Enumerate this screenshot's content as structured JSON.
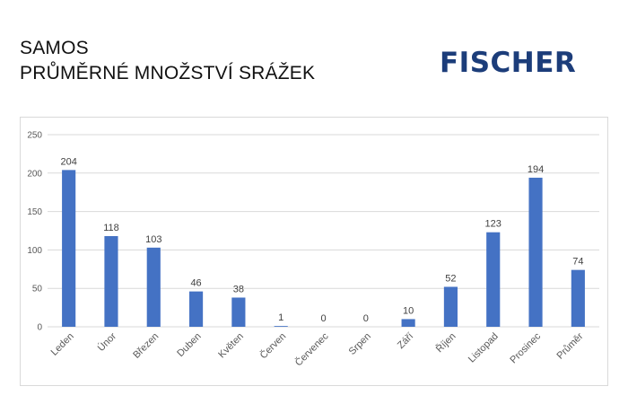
{
  "header": {
    "title_line1": "SAMOS",
    "title_line2": "PRŮMĚRNÉ MNOŽSTVÍ SRÁŽEK",
    "logo_text": "FISCHER"
  },
  "colors": {
    "bar": "#4472c4",
    "logo": "#1c3d7a",
    "grid": "#d9d9d9"
  },
  "chart_data": {
    "type": "bar",
    "title": "",
    "xlabel": "",
    "ylabel": "",
    "ylim": [
      0,
      250
    ],
    "yticks": [
      0,
      50,
      100,
      150,
      200,
      250
    ],
    "grid": true,
    "legend": "none",
    "categories": [
      "Leden",
      "Únor",
      "Březen",
      "Duben",
      "Květen",
      "Červen",
      "Červenec",
      "Srpen",
      "Září",
      "Říjen",
      "Listopad",
      "Prosinec",
      "Průměr"
    ],
    "values": [
      204,
      118,
      103,
      46,
      38,
      1,
      0,
      0,
      10,
      52,
      123,
      194,
      74
    ],
    "data_labels": true
  }
}
